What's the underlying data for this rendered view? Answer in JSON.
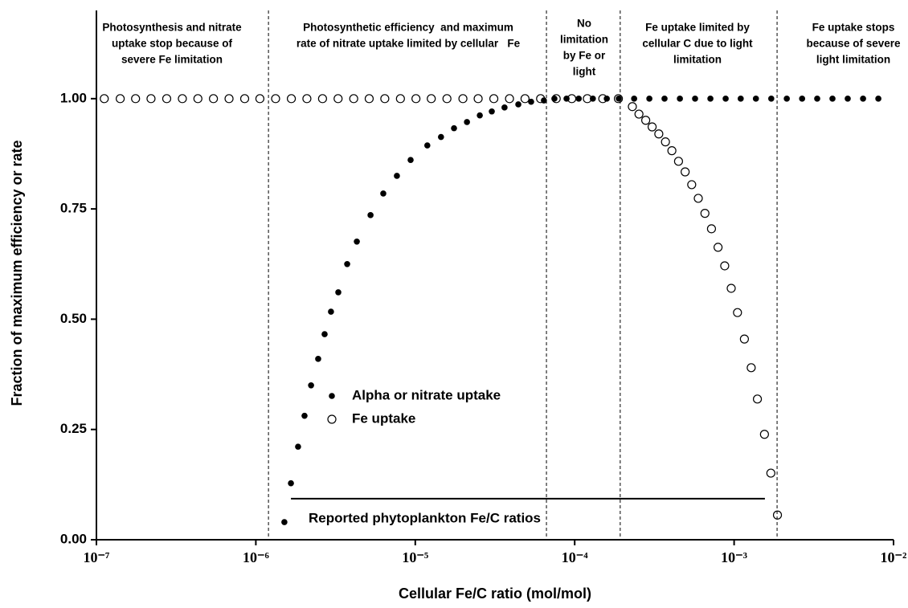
{
  "chart_data": {
    "type": "scatter",
    "xlabel": "Cellular Fe/C ratio (mol/mol)",
    "ylabel": "Fraction of maximum efficiency or rate",
    "xscale": "log",
    "xlim": [
      1e-07,
      0.01
    ],
    "ylim": [
      0,
      1.2
    ],
    "xticks": [
      {
        "value": 1e-07,
        "label": "10⁻⁷"
      },
      {
        "value": 1e-06,
        "label": "10⁻⁶"
      },
      {
        "value": 1e-05,
        "label": "10⁻⁵"
      },
      {
        "value": 0.0001,
        "label": "10⁻⁴"
      },
      {
        "value": 0.001,
        "label": "10⁻³"
      },
      {
        "value": 0.01,
        "label": "10⁻²"
      }
    ],
    "yticks": [
      {
        "value": 0,
        "label": "0.00"
      },
      {
        "value": 0.25,
        "label": "0.25"
      },
      {
        "value": 0.5,
        "label": "0.50"
      },
      {
        "value": 0.75,
        "label": "0.75"
      },
      {
        "value": 1,
        "label": "1.00"
      }
    ],
    "legend": "center-left",
    "series": [
      {
        "name": "Alpha or nitrate uptake",
        "color": "#000000",
        "marker": "filled",
        "x": [
          1.51e-06,
          1.66e-06,
          1.84e-06,
          2.02e-06,
          2.22e-06,
          2.46e-06,
          2.7e-06,
          2.96e-06,
          3.29e-06,
          3.74e-06,
          4.3e-06,
          5.24e-06,
          6.3e-06,
          7.67e-06,
          9.35e-06,
          1.19e-05,
          1.45e-05,
          1.75e-05,
          2.11e-05,
          2.54e-05,
          3.02e-05,
          3.63e-05,
          4.43e-05,
          5.33e-05,
          6.41e-05,
          7.46e-05,
          8.89e-05,
          0.000106,
          0.00013,
          0.000159,
          0.000189,
          0.000236,
          0.000294,
          0.000366,
          0.000457,
          0.000569,
          0.00071,
          0.000885,
          0.0011,
          0.00137,
          0.00171,
          0.00214,
          0.00267,
          0.00332,
          0.00414,
          0.00516,
          0.00644,
          0.00803
        ],
        "values": [
          0.04,
          0.128,
          0.211,
          0.281,
          0.35,
          0.41,
          0.466,
          0.517,
          0.561,
          0.625,
          0.676,
          0.736,
          0.785,
          0.825,
          0.861,
          0.894,
          0.913,
          0.933,
          0.947,
          0.962,
          0.971,
          0.98,
          0.987,
          0.993,
          0.996,
          1,
          1,
          1,
          1,
          1,
          1,
          1,
          1,
          1,
          1,
          1,
          1,
          1,
          1,
          1,
          1,
          1,
          1,
          1,
          1,
          1,
          1,
          1
        ]
      },
      {
        "name": "Fe uptake",
        "color": "#000000",
        "marker": "open",
        "x": [
          1.12e-07,
          1.41e-07,
          1.76e-07,
          2.2e-07,
          2.76e-07,
          3.46e-07,
          4.33e-07,
          5.42e-07,
          6.79e-07,
          8.51e-07,
          1.06e-06,
          1.33e-06,
          1.67e-06,
          2.09e-06,
          2.62e-06,
          3.28e-06,
          4.11e-06,
          5.14e-06,
          6.44e-06,
          8.07e-06,
          1.01e-05,
          1.26e-05,
          1.58e-05,
          1.99e-05,
          2.48e-05,
          3.11e-05,
          3.9e-05,
          4.88e-05,
          6.11e-05,
          7.66e-05,
          9.59e-05,
          0.00012,
          0.00015,
          0.000188,
          0.00023,
          0.000253,
          0.000279,
          0.000306,
          0.000337,
          0.000371,
          0.000407,
          0.000448,
          0.000493,
          0.000542,
          0.000596,
          0.000656,
          0.000721,
          0.000793,
          0.000873,
          0.000959,
          0.00105,
          0.00116,
          0.00128,
          0.0014,
          0.00155,
          0.0017,
          0.00187
        ],
        "values": [
          1,
          1,
          1,
          1,
          1,
          1,
          1,
          1,
          1,
          1,
          1,
          1,
          1,
          1,
          1,
          1,
          1,
          1,
          1,
          1,
          1,
          1,
          1,
          1,
          1,
          1,
          1,
          1,
          1,
          1,
          1,
          1,
          1,
          1,
          0.982,
          0.965,
          0.951,
          0.936,
          0.92,
          0.902,
          0.882,
          0.858,
          0.834,
          0.805,
          0.774,
          0.74,
          0.705,
          0.663,
          0.621,
          0.57,
          0.515,
          0.455,
          0.39,
          0.319,
          0.239,
          0.151,
          0.056
        ]
      }
    ],
    "boundaries": [
      1.2e-06,
      6.65e-05,
      0.000193,
      0.00186
    ],
    "regions": [
      [
        "Photosynthesis and nitrate",
        "uptake stop because of",
        "severe Fe limitation"
      ],
      [
        "Photosynthetic efficiency  and maximum",
        "rate of nitrate uptake limited by cellular   Fe"
      ],
      [
        "No",
        "limitation",
        "by Fe or",
        "light"
      ],
      [
        "Fe uptake limited by",
        "cellular C due to light",
        "limitation"
      ],
      [
        "Fe uptake stops",
        "because of severe",
        "light limitation"
      ]
    ],
    "range_bar": {
      "label": "Reported phytoplankton Fe/C ratios",
      "x": [
        1.66e-06,
        0.00156
      ],
      "y": 0.093
    }
  }
}
